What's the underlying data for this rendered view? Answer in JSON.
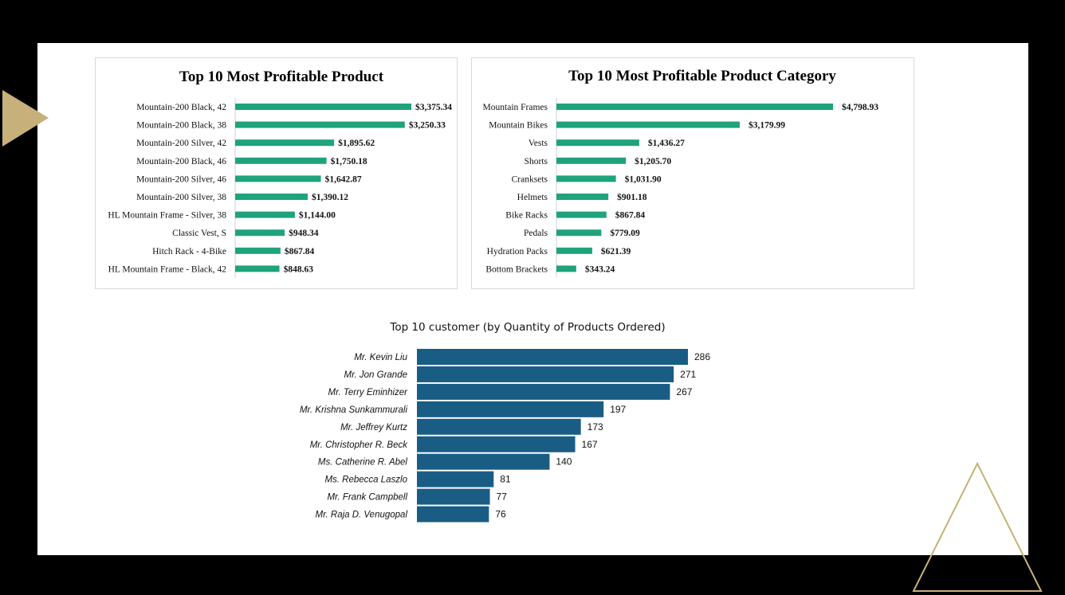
{
  "colors": {
    "background": "#000000",
    "slide": "#ffffff",
    "green_bar": "#1fa37c",
    "blue_bar": "#1a5d84",
    "gold_accent": "#c8b07a"
  },
  "decorations": {
    "left": "gold-play-triangle-icon",
    "right": "gold-outline-triangle-icon"
  },
  "chart_data": [
    {
      "type": "bar",
      "orientation": "horizontal",
      "title": "Top 10 Most Profitable Product",
      "categories": [
        "Mountain-200 Black, 42",
        "Mountain-200 Black, 38",
        "Mountain-200 Silver, 42",
        "Mountain-200 Black, 46",
        "Mountain-200 Silver, 46",
        "Mountain-200 Silver, 38",
        "HL Mountain Frame - Silver, 38",
        "Classic Vest, S",
        "Hitch Rack - 4-Bike",
        "HL Mountain Frame - Black, 42"
      ],
      "values": [
        3375.34,
        3250.33,
        1895.62,
        1750.18,
        1642.87,
        1390.12,
        1144.0,
        948.34,
        867.84,
        848.63
      ],
      "value_labels": [
        "$3,375.34",
        "$3,250.33",
        "$1,895.62",
        "$1,750.18",
        "$1,642.87",
        "$1,390.12",
        "$1,144.00",
        "$948.34",
        "$867.84",
        "$848.63"
      ],
      "xlim": [
        0,
        3375.34
      ],
      "grid": false,
      "legend": "none"
    },
    {
      "type": "bar",
      "orientation": "horizontal",
      "title": "Top 10 Most Profitable Product Category",
      "categories": [
        "Mountain Frames",
        "Mountain Bikes",
        "Vests",
        "Shorts",
        "Cranksets",
        "Helmets",
        "Bike Racks",
        "Pedals",
        "Hydration Packs",
        "Bottom Brackets"
      ],
      "values": [
        4798.93,
        3179.99,
        1436.27,
        1205.7,
        1031.9,
        901.18,
        867.84,
        779.09,
        621.39,
        343.24
      ],
      "value_labels": [
        "$4,798.93",
        "$3,179.99",
        "$1,436.27",
        "$1,205.70",
        "$1,031.90",
        "$901.18",
        "$867.84",
        "$779.09",
        "$621.39",
        "$343.24"
      ],
      "xlim": [
        0,
        4798.93
      ],
      "grid": false,
      "legend": "none"
    },
    {
      "type": "bar",
      "orientation": "horizontal",
      "title": "Top 10 customer (by Quantity of Products Ordered)",
      "categories": [
        "Mr. Kevin Liu",
        "Mr. Jon Grande",
        "Mr. Terry Eminhizer",
        "Mr. Krishna Sunkammurali",
        "Mr. Jeffrey Kurtz",
        "Mr. Christopher R. Beck",
        "Ms. Catherine R. Abel",
        "Ms. Rebecca Laszlo",
        "Mr. Frank Campbell",
        "Mr. Raja D. Venugopal"
      ],
      "values": [
        286,
        271,
        267,
        197,
        173,
        167,
        140,
        81,
        77,
        76
      ],
      "value_labels": [
        "286",
        "271",
        "267",
        "197",
        "173",
        "167",
        "140",
        "81",
        "77",
        "76"
      ],
      "xlim": [
        0,
        286
      ],
      "grid": false,
      "legend": "none"
    }
  ]
}
